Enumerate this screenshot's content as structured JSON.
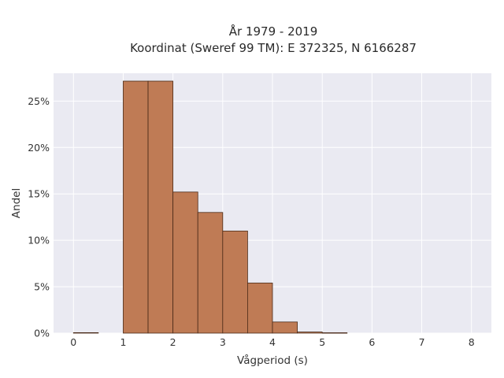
{
  "chart_data": {
    "type": "bar",
    "title_line1": "År 1979 - 2019",
    "title_line2": "Koordinat (Sweref 99 TM): E 372325, N 6166287",
    "xlabel": "Vågperiod (s)",
    "ylabel": "Andel",
    "xlim": [
      -0.4,
      8.4
    ],
    "ylim": [
      0,
      0.28
    ],
    "x_ticks": [
      0,
      1,
      2,
      3,
      4,
      5,
      6,
      7,
      8
    ],
    "x_tick_labels": [
      "0",
      "1",
      "2",
      "3",
      "4",
      "5",
      "6",
      "7",
      "8"
    ],
    "y_ticks": [
      0,
      0.05,
      0.1,
      0.15,
      0.2,
      0.25
    ],
    "y_tick_labels": [
      "0%",
      "5%",
      "10%",
      "15%",
      "20%",
      "25%"
    ],
    "grid": true,
    "bin_width": 0.5,
    "bins": [
      {
        "start": 0.0,
        "value": 0.0005
      },
      {
        "start": 0.5,
        "value": 0.0
      },
      {
        "start": 1.0,
        "value": 0.2715
      },
      {
        "start": 1.5,
        "value": 0.2715
      },
      {
        "start": 2.0,
        "value": 0.152
      },
      {
        "start": 2.5,
        "value": 0.13
      },
      {
        "start": 3.0,
        "value": 0.11
      },
      {
        "start": 3.5,
        "value": 0.054
      },
      {
        "start": 4.0,
        "value": 0.012
      },
      {
        "start": 4.5,
        "value": 0.0012
      },
      {
        "start": 5.0,
        "value": 0.0004
      }
    ],
    "colors": {
      "bar_fill": "#bf7b55",
      "bar_edge": "#4a2a18",
      "plot_bg": "#eaeaf2",
      "grid": "#ffffff"
    }
  }
}
